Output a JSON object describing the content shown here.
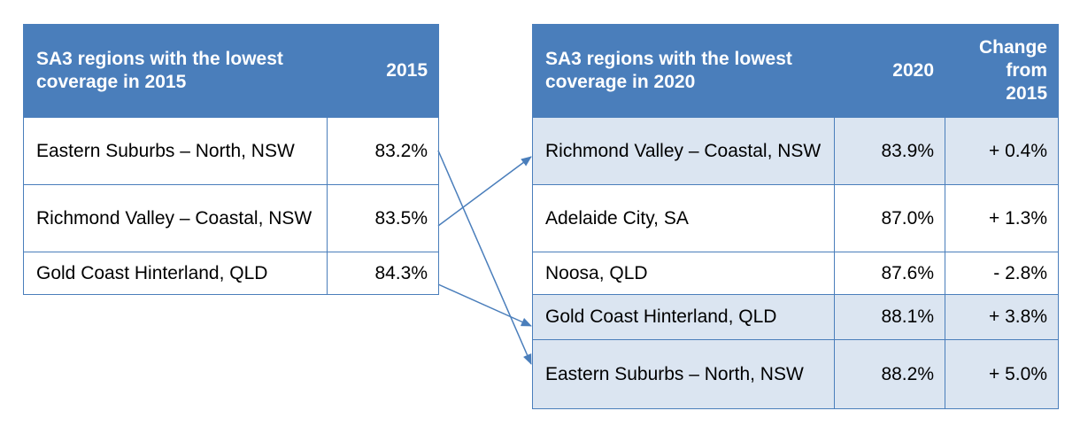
{
  "table_2015": {
    "header": {
      "region": "SA3 regions with the lowest coverage in 2015",
      "year": "2015"
    },
    "rows": [
      {
        "region": "Eastern Suburbs – North, NSW",
        "value": "83.2%"
      },
      {
        "region": "Richmond Valley – Coastal, NSW",
        "value": "83.5%"
      },
      {
        "region": "Gold Coast Hinterland, QLD",
        "value": "84.3%"
      }
    ]
  },
  "table_2020": {
    "header": {
      "region": "SA3 regions with the lowest coverage in 2020",
      "year": "2020",
      "change": "Change from 2015"
    },
    "rows": [
      {
        "region": "Richmond Valley – Coastal, NSW",
        "value": "83.9%",
        "change": "+ 0.4%"
      },
      {
        "region": "Adelaide City, SA",
        "value": "87.0%",
        "change": "+ 1.3%"
      },
      {
        "region": "Noosa, QLD",
        "value": "87.6%",
        "change": "- 2.8%"
      },
      {
        "region": "Gold Coast Hinterland, QLD",
        "value": "88.1%",
        "change": "+ 3.8%"
      },
      {
        "region": "Eastern Suburbs – North, NSW",
        "value": "88.2%",
        "change": "+ 5.0%"
      }
    ]
  },
  "colors": {
    "header_bg": "#4a7ebb",
    "highlight_row": "#dbe5f1",
    "arrow": "#4a7ebb"
  }
}
